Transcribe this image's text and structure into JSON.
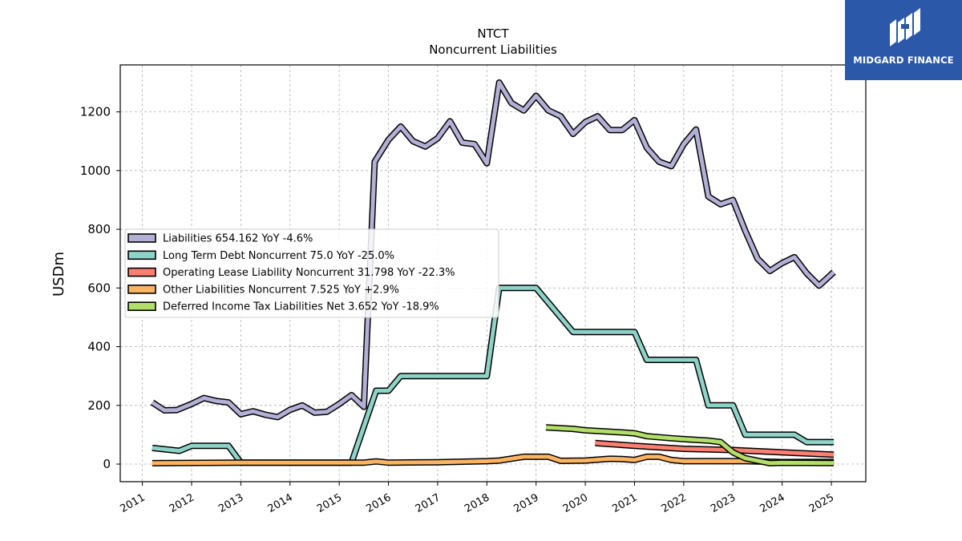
{
  "brand": {
    "name": "MIDGARD FINANCE",
    "color": "#2b58a8"
  },
  "chart_data": {
    "type": "line",
    "title": "NTCT",
    "subtitle": "Noncurrent  Liabilities",
    "ylabel": "USDm",
    "xlabel": "",
    "ylim": [
      -60,
      1360
    ],
    "xlim": [
      2010.55,
      2025.7
    ],
    "yticks": [
      0,
      200,
      400,
      600,
      800,
      1000,
      1200
    ],
    "xticks": [
      "2011",
      "2012",
      "2013",
      "2014",
      "2015",
      "2016",
      "2017",
      "2018",
      "2019",
      "2020",
      "2021",
      "2022",
      "2023",
      "2024",
      "2025"
    ],
    "grid": true,
    "legend_position": "center-left",
    "series": [
      {
        "name": "Liabilities",
        "legend": "Liabilities  654.162 YoY -4.6%",
        "color": "#b3b0d6",
        "points": [
          [
            2011.2,
            210
          ],
          [
            2011.45,
            183
          ],
          [
            2011.7,
            184
          ],
          [
            2012.0,
            205
          ],
          [
            2012.25,
            225
          ],
          [
            2012.5,
            215
          ],
          [
            2012.75,
            210
          ],
          [
            2013.0,
            170
          ],
          [
            2013.25,
            180
          ],
          [
            2013.5,
            168
          ],
          [
            2013.75,
            160
          ],
          [
            2014.0,
            185
          ],
          [
            2014.25,
            200
          ],
          [
            2014.5,
            175
          ],
          [
            2014.75,
            178
          ],
          [
            2015.0,
            205
          ],
          [
            2015.25,
            235
          ],
          [
            2015.5,
            195
          ],
          [
            2015.72,
            1030
          ],
          [
            2016.0,
            1105
          ],
          [
            2016.25,
            1150
          ],
          [
            2016.5,
            1100
          ],
          [
            2016.75,
            1082
          ],
          [
            2017.0,
            1110
          ],
          [
            2017.25,
            1168
          ],
          [
            2017.5,
            1095
          ],
          [
            2017.75,
            1090
          ],
          [
            2018.0,
            1025
          ],
          [
            2018.25,
            1300
          ],
          [
            2018.5,
            1230
          ],
          [
            2018.75,
            1205
          ],
          [
            2019.0,
            1255
          ],
          [
            2019.25,
            1205
          ],
          [
            2019.5,
            1185
          ],
          [
            2019.75,
            1125
          ],
          [
            2020.0,
            1165
          ],
          [
            2020.25,
            1185
          ],
          [
            2020.5,
            1138
          ],
          [
            2020.75,
            1138
          ],
          [
            2021.0,
            1172
          ],
          [
            2021.25,
            1078
          ],
          [
            2021.5,
            1030
          ],
          [
            2021.75,
            1015
          ],
          [
            2022.0,
            1090
          ],
          [
            2022.25,
            1140
          ],
          [
            2022.5,
            912
          ],
          [
            2022.75,
            885
          ],
          [
            2023.0,
            900
          ],
          [
            2023.25,
            795
          ],
          [
            2023.5,
            700
          ],
          [
            2023.75,
            658
          ],
          [
            2024.0,
            685
          ],
          [
            2024.25,
            705
          ],
          [
            2024.5,
            650
          ],
          [
            2024.75,
            608
          ],
          [
            2025.05,
            654
          ]
        ]
      },
      {
        "name": "Long Term Debt Noncurrent",
        "legend": "Long Term Debt Noncurrent  75.0 YoY -25.0%",
        "color": "#8dd3c7",
        "points": [
          [
            2011.2,
            55
          ],
          [
            2011.75,
            45
          ],
          [
            2012.0,
            62
          ],
          [
            2012.75,
            62
          ],
          [
            2013.0,
            5
          ],
          [
            2015.25,
            5
          ],
          [
            2015.75,
            250
          ],
          [
            2016.0,
            250
          ],
          [
            2016.25,
            300
          ],
          [
            2018.0,
            300
          ],
          [
            2018.25,
            600
          ],
          [
            2019.0,
            600
          ],
          [
            2019.75,
            450
          ],
          [
            2021.0,
            450
          ],
          [
            2021.25,
            355
          ],
          [
            2022.25,
            355
          ],
          [
            2022.5,
            200
          ],
          [
            2023.0,
            200
          ],
          [
            2023.25,
            100
          ],
          [
            2024.25,
            100
          ],
          [
            2024.5,
            75
          ],
          [
            2025.05,
            75
          ]
        ]
      },
      {
        "name": "Operating Lease Liability Noncurrent",
        "legend": "Operating Lease Liability Noncurrent  31.798 YoY -22.3%",
        "color": "#fb8072",
        "points": [
          [
            2020.2,
            72
          ],
          [
            2021.0,
            62
          ],
          [
            2022.0,
            52
          ],
          [
            2023.0,
            48
          ],
          [
            2024.0,
            40
          ],
          [
            2025.05,
            32
          ]
        ]
      },
      {
        "name": "Other Liabilities Noncurrent",
        "legend": "Other Liabilities Noncurrent  7.525 YoY +2.9%",
        "color": "#fdb462",
        "points": [
          [
            2011.2,
            3
          ],
          [
            2013.0,
            5
          ],
          [
            2015.5,
            5
          ],
          [
            2015.75,
            9
          ],
          [
            2016.0,
            5
          ],
          [
            2017.0,
            6
          ],
          [
            2018.0,
            10
          ],
          [
            2018.25,
            12
          ],
          [
            2018.75,
            25
          ],
          [
            2019.25,
            25
          ],
          [
            2019.5,
            11
          ],
          [
            2020.0,
            12
          ],
          [
            2020.5,
            18
          ],
          [
            2020.75,
            17
          ],
          [
            2021.0,
            14
          ],
          [
            2021.25,
            25
          ],
          [
            2021.5,
            25
          ],
          [
            2021.75,
            14
          ],
          [
            2022.0,
            10
          ],
          [
            2023.0,
            10
          ],
          [
            2023.25,
            10
          ],
          [
            2024.0,
            7
          ],
          [
            2025.05,
            7.5
          ]
        ]
      },
      {
        "name": "Deferred Income Tax Liabilities Net",
        "legend": "Deferred Income Tax Liabilities Net  3.652 YoY -18.9%",
        "color": "#b3de69",
        "points": [
          [
            2019.2,
            125
          ],
          [
            2019.75,
            120
          ],
          [
            2020.0,
            115
          ],
          [
            2020.75,
            108
          ],
          [
            2021.0,
            105
          ],
          [
            2021.25,
            95
          ],
          [
            2021.75,
            88
          ],
          [
            2022.0,
            85
          ],
          [
            2022.5,
            80
          ],
          [
            2022.75,
            75
          ],
          [
            2023.0,
            40
          ],
          [
            2023.25,
            20
          ],
          [
            2023.75,
            3
          ],
          [
            2024.0,
            4.5
          ],
          [
            2025.05,
            3.65
          ]
        ]
      }
    ]
  }
}
